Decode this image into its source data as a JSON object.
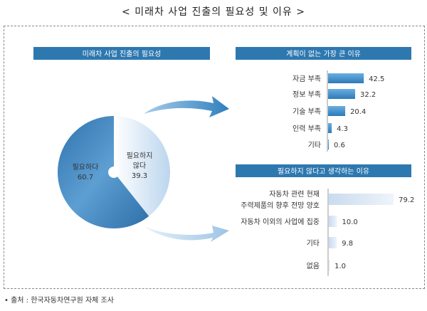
{
  "title": "< 미래차 사업 진출의 필요성 및 이유 >",
  "source": "• 출처 : 한국자동차연구원 자체 조사",
  "chart_data": [
    {
      "type": "pie",
      "title": "미래차 사업 진출의 필요성",
      "slices": [
        {
          "label": "필요하지 않다",
          "label_lines": [
            "필요하지",
            "않다"
          ],
          "value": 39.3,
          "color": "#dce9f5"
        },
        {
          "label": "필요하다",
          "label_lines": [
            "필요하다"
          ],
          "value": 60.7,
          "color": "#3f86bf"
        }
      ]
    },
    {
      "type": "bar",
      "orientation": "horizontal",
      "title": "계획이 없는 가장 큰 이유",
      "categories": [
        "자금 부족",
        "정보 부족",
        "기술 부족",
        "인력 부족",
        "기타"
      ],
      "values": [
        42.5,
        32.2,
        20.4,
        4.3,
        0.6
      ],
      "values_text": [
        "42.5",
        "32.2",
        "20.4",
        "4.3",
        "0.6"
      ],
      "color": "#3a8ac8"
    },
    {
      "type": "bar",
      "orientation": "horizontal",
      "title": "필요하지 않다고 생각하는 이유",
      "categories": [
        "자동차 관련 현재 주력제품의 향후 전망 양호",
        "자동차 이외의 사업에 집중",
        "기타",
        "없음"
      ],
      "category_lines": [
        [
          "자동차 관련 현재",
          "주력제품의 향후 전망 양호"
        ],
        [
          "자동차 이외의 사업에 집중"
        ],
        [
          "기타"
        ],
        [
          "없음"
        ]
      ],
      "values": [
        79.2,
        10.0,
        9.8,
        1.0
      ],
      "values_text": [
        "79.2",
        "10.0",
        "9.8",
        "1.0"
      ],
      "color": "#d6e4f3"
    }
  ]
}
